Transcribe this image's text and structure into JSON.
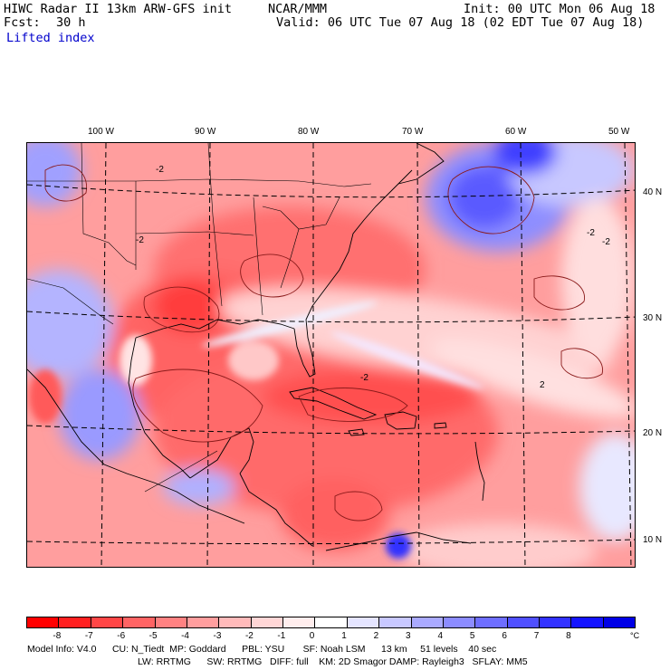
{
  "header": {
    "title": "HIWC Radar II 13km ARW-GFS init",
    "center": "NCAR/MMM",
    "init": "Init: 00 UTC Mon 06 Aug 18",
    "fcst_label": "Fcst:",
    "fcst_value": "30 h",
    "valid": "Valid: 06 UTC Tue 07 Aug 18 (02 EDT Tue 07 Aug 18)",
    "field": "Lifted index"
  },
  "map": {
    "lon_labels": [
      "100 W",
      "90 W",
      "80 W",
      "70 W",
      "60 W",
      "50 W"
    ],
    "lat_labels": [
      "40 N",
      "30 N",
      "20 N",
      "10 N"
    ],
    "contour_labels": [
      "-2",
      "-2",
      "-2",
      "2",
      "-2",
      "-2"
    ]
  },
  "colorbar": {
    "colors": [
      "#ff0000",
      "#ff2020",
      "#ff4646",
      "#ff6464",
      "#ff8282",
      "#ff9e9e",
      "#ffbaba",
      "#ffd6d6",
      "#ffeded",
      "#ffffff",
      "#e4e4ff",
      "#c8c8ff",
      "#aaaaff",
      "#8c8cff",
      "#6e6eff",
      "#5050ff",
      "#3232ff",
      "#1414ff",
      "#0000e6"
    ],
    "labels": [
      "-8",
      "-7",
      "-6",
      "-5",
      "-4",
      "-3",
      "-2",
      "-1",
      "0",
      "1",
      "2",
      "3",
      "4",
      "5",
      "6",
      "7",
      "8"
    ],
    "unit": "°C"
  },
  "footer": {
    "line1": "Model Info: V4.0      CU: N_Tiedt  MP: Goddard      PBL: YSU       SF: Noah LSM      13 km     51 levels    40 sec",
    "line2": "LW: RRTMG      SW: RRTMG   DIFF: full    KM: 2D Smagor DAMP: Rayleigh3   SFLAY: MM5"
  }
}
